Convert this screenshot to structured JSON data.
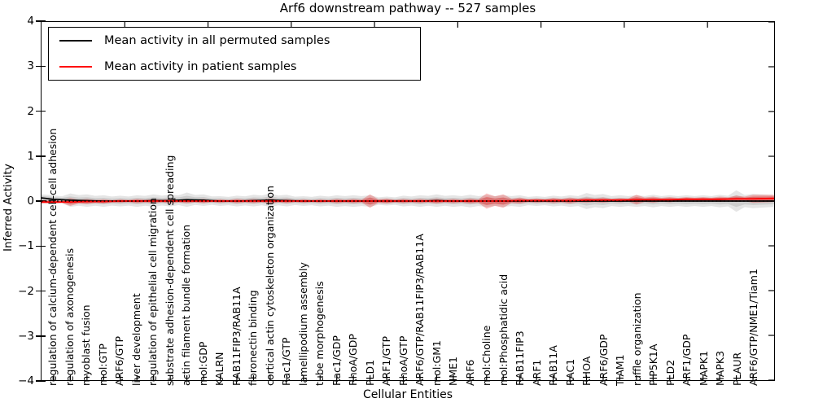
{
  "chart_data": {
    "type": "violin",
    "title": "Arf6 downstream pathway -- 527 samples",
    "xlabel": "Cellular Entities",
    "ylabel": "Inferred Activity",
    "ylim": [
      -4,
      4
    ],
    "yticks": [
      {
        "value": 4,
        "label": "4"
      },
      {
        "value": 3,
        "label": "3"
      },
      {
        "value": 2,
        "label": "2"
      },
      {
        "value": 1,
        "label": "1"
      },
      {
        "value": 0,
        "label": "0"
      },
      {
        "value": -1,
        "label": "−1"
      },
      {
        "value": -2,
        "label": "−2"
      },
      {
        "value": -3,
        "label": "−3"
      },
      {
        "value": -4,
        "label": "−4"
      }
    ],
    "x_major_ticks": [
      5,
      10,
      15,
      20,
      25,
      30,
      35,
      40
    ],
    "legend_position": "upper left",
    "grid": false,
    "baseline": {
      "value": 0,
      "style": "dotted",
      "color": "#000000"
    },
    "entities": [
      "regulation of calcium-dependent cell-cell adhesion",
      "regulation of axonogenesis",
      "myoblast fusion",
      "mol:GTP",
      "ARF6/GTP",
      "liver development",
      "regulation of epithelial cell migration",
      "substrate adhesion-dependent cell spreading",
      "actin filament bundle formation",
      "mol:GDP",
      "KALRN",
      "RAB11FIP3/RAB11A",
      "fibronectin binding",
      "cortical actin cytoskeleton organization",
      "Rac1/GTP",
      "lamellipodium assembly",
      "tube morphogenesis",
      "Rac1/GDP",
      "RhoA/GDP",
      "PLD1",
      "ARF1/GTP",
      "RhoA/GTP",
      "ARF6/GTP/RAB11FIP3/RAB11A",
      "mol:GM1",
      "NME1",
      "ARF6",
      "mol:Choline",
      "mol:Phosphatidic acid",
      "RAB11FIP3",
      "ARF1",
      "RAB11A",
      "RAC1",
      "RHOA",
      "ARF6/GDP",
      "TIAM1",
      "ruffle organization",
      "PIP5K1A",
      "PLD2",
      "ARF1/GDP",
      "MAPK1",
      "MAPK3",
      "PLAUR",
      "ARF6/GTP/NME1/Tiam1"
    ],
    "series": [
      {
        "name": "Mean activity in all permuted samples",
        "color": "#000000",
        "band_color": "rgba(0,0,0,0.10)",
        "mean": [
          0.04,
          0.02,
          0.01,
          0,
          0,
          0,
          0.01,
          0.01,
          0.03,
          0.02,
          0,
          0,
          0.01,
          0.02,
          0.01,
          0,
          0,
          0,
          0,
          0,
          0,
          0,
          0,
          0.01,
          0,
          0,
          0,
          0,
          0,
          0,
          0,
          0,
          0,
          0,
          0,
          0,
          0,
          0,
          0,
          0,
          0,
          0,
          0
        ],
        "half_width": [
          0.09,
          0.15,
          0.14,
          0.13,
          0.12,
          0.13,
          0.14,
          0.13,
          0.16,
          0.13,
          0.11,
          0.12,
          0.13,
          0.15,
          0.13,
          0.11,
          0.12,
          0.13,
          0.13,
          0.13,
          0.1,
          0.12,
          0.13,
          0.14,
          0.13,
          0.14,
          0.13,
          0.13,
          0.13,
          0.11,
          0.12,
          0.13,
          0.18,
          0.16,
          0.13,
          0.13,
          0.14,
          0.13,
          0.13,
          0.13,
          0.14,
          0.24,
          0.16
        ],
        "edge_left": {
          "mean": 0.07,
          "half_width": 0.08
        },
        "edge_right": {
          "mean": 0.0,
          "half_width": 0.13
        }
      },
      {
        "name": "Mean activity in patient samples",
        "color": "#ff0000",
        "band_color": "rgba(230,40,40,0.30)",
        "mean": [
          -0.02,
          -0.02,
          -0.01,
          -0.01,
          0,
          0,
          0,
          0,
          0,
          0,
          0,
          0,
          0,
          0,
          0,
          0,
          0,
          0,
          0,
          0,
          0,
          0,
          0,
          0,
          0,
          0,
          0,
          0,
          0.01,
          0.01,
          0.01,
          0.01,
          0.02,
          0.02,
          0.02,
          0.03,
          0.03,
          0.03,
          0.04,
          0.04,
          0.04,
          0.05,
          0.05
        ],
        "half_width": [
          0.04,
          0.09,
          0.06,
          0.05,
          0.04,
          0.05,
          0.05,
          0.05,
          0.05,
          0.05,
          0.04,
          0.05,
          0.05,
          0.06,
          0.05,
          0.04,
          0.04,
          0.05,
          0.05,
          0.15,
          0.06,
          0.05,
          0.05,
          0.06,
          0.05,
          0.06,
          0.17,
          0.15,
          0.07,
          0.05,
          0.06,
          0.07,
          0.06,
          0.06,
          0.05,
          0.11,
          0.07,
          0.06,
          0.05,
          0.05,
          0.06,
          0.07,
          0.09
        ],
        "edge_left": {
          "mean": -0.02,
          "half_width": 0.04
        },
        "edge_right": {
          "mean": 0.06,
          "half_width": 0.08
        }
      }
    ]
  }
}
